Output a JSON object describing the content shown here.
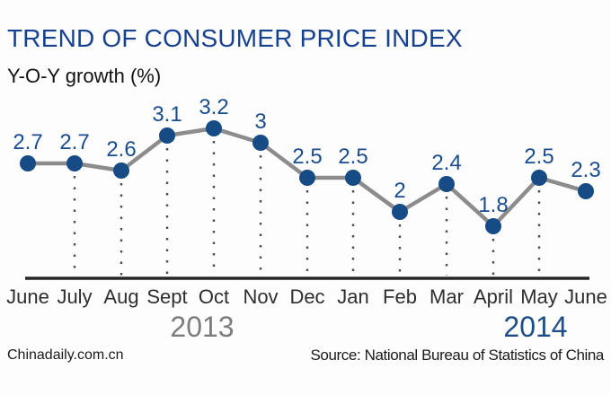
{
  "header": {
    "title": "TREND OF CONSUMER PRICE INDEX",
    "subtitle": "Y-O-Y growth (%)"
  },
  "footer": {
    "site": "Chinadaily.com.cn",
    "source": "Source: National Bureau of Statistics of China"
  },
  "chart_data": {
    "type": "line",
    "title": "TREND OF CONSUMER PRICE INDEX",
    "ylabel": "Y-O-Y growth (%)",
    "categories": [
      "June",
      "July",
      "Aug",
      "Sept",
      "Oct",
      "Nov",
      "Dec",
      "Jan",
      "Feb",
      "Mar",
      "April",
      "May",
      "June"
    ],
    "values": [
      2.7,
      2.7,
      2.6,
      3.1,
      3.2,
      3,
      2.5,
      2.5,
      2,
      2.4,
      1.8,
      2.5,
      2.3
    ],
    "value_labels": [
      "2.7",
      "2.7",
      "2.6",
      "3.1",
      "3.2",
      "3",
      "2.5",
      "2.5",
      "2",
      "2.4",
      "1.8",
      "2.5",
      "2.3"
    ],
    "x_groups": [
      {
        "label": "2013",
        "months": [
          "June",
          "July",
          "Aug",
          "Sept",
          "Oct",
          "Nov",
          "Dec"
        ]
      },
      {
        "label": "2014",
        "months": [
          "Jan",
          "Feb",
          "Mar",
          "April",
          "May",
          "June"
        ]
      }
    ],
    "ylim": [
      1.5,
      3.5
    ],
    "grid": "dotted vertical droplines from each point down to x-axis (July through May only)",
    "legend": "none"
  },
  "colors": {
    "title_blue": "#16418f",
    "point_navy": "#174b85",
    "label_navy": "#1a4d8d",
    "line_gray": "#8c8c8c",
    "axis_dark": "#262626",
    "month_text": "#2e2e2e",
    "year_2013": "#7d7d7d",
    "year_2014": "#1d4e87",
    "dropline": "#4a4a4a",
    "background": "#fdfdfd"
  }
}
